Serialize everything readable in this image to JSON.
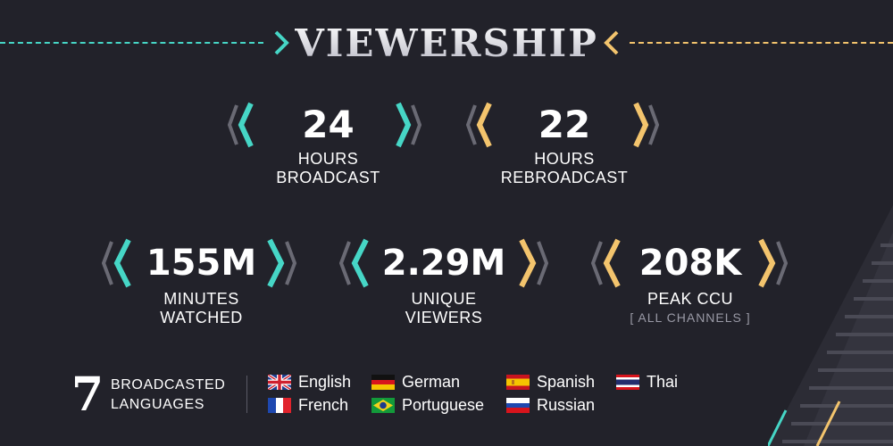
{
  "header": {
    "title": "VIEWERSHIP"
  },
  "stats_top": [
    {
      "value": "24",
      "label_line1": "HOURS",
      "label_line2": "BROADCAST"
    },
    {
      "value": "22",
      "label_line1": "HOURS",
      "label_line2": "REBROADCAST"
    }
  ],
  "stats_bottom": [
    {
      "value": "155M",
      "label_line1": "MINUTES",
      "label_line2": "WATCHED"
    },
    {
      "value": "2.29M",
      "label_line1": "UNIQUE",
      "label_line2": "VIEWERS"
    },
    {
      "value": "208K",
      "label_line1": "PEAK CCU",
      "label_sub": "[ ALL CHANNELS ]"
    }
  ],
  "languages": {
    "count": "7",
    "label_line1": "BROADCASTED",
    "label_line2": "LANGUAGES",
    "items": [
      {
        "name": "English",
        "flag": "uk-flag-icon"
      },
      {
        "name": "French",
        "flag": "france-flag-icon"
      },
      {
        "name": "German",
        "flag": "germany-flag-icon"
      },
      {
        "name": "Portuguese",
        "flag": "brazil-flag-icon"
      },
      {
        "name": "Spanish",
        "flag": "spain-flag-icon"
      },
      {
        "name": "Russian",
        "flag": "russia-flag-icon"
      },
      {
        "name": "Thai",
        "flag": "thailand-flag-icon"
      }
    ]
  },
  "colors": {
    "background": "#22222a",
    "teal": "#46d6c6",
    "gold": "#f3c46d",
    "grey": "#6a6a74"
  }
}
